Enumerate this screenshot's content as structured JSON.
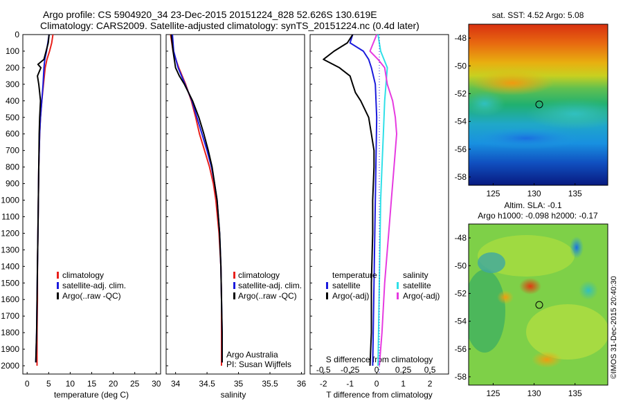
{
  "header": {
    "line1": "Argo profile: CS 5904920_34 23-Dec-2015 20151224_828 52.626S 130.619E",
    "line2": "Climatology: CARS2009. Satellite-adjusted climatology: synTS_20151224.nc (0.4d later)"
  },
  "side_label": "©IMOS 31-Dec-2015 20:40:30",
  "depth_ticks": [
    "0",
    "100",
    "200",
    "300",
    "400",
    "500",
    "600",
    "700",
    "800",
    "900",
    "1000",
    "1100",
    "1200",
    "1300",
    "1400",
    "1500",
    "1600",
    "1700",
    "1800",
    "1900",
    "2000"
  ],
  "colors": {
    "climatology": "#e8201b",
    "satellite": "#1a1adc",
    "argo": "#000000",
    "cyan": "#2fe0e8",
    "magenta": "#e63ae0"
  },
  "chart_data": [
    {
      "type": "line",
      "id": "temperature",
      "xlabel": "temperature (deg C)",
      "xlim": [
        -1,
        31
      ],
      "ylim": [
        2050,
        0
      ],
      "xticks": [
        "0",
        "5",
        "10",
        "15",
        "20",
        "25",
        "30"
      ],
      "legend": [
        "climatology",
        "satellite-adj. clim.",
        "Argo(..raw -QC)"
      ],
      "series": [
        {
          "name": "climatology",
          "color": "#e8201b",
          "depth": [
            0,
            50,
            100,
            150,
            200,
            300,
            400,
            500,
            600,
            800,
            1000,
            1200,
            1400,
            1600,
            1800,
            2000
          ],
          "values": [
            6.0,
            5.7,
            5.2,
            4.6,
            4.2,
            3.8,
            3.4,
            3.1,
            2.9,
            2.7,
            2.6,
            2.5,
            2.4,
            2.4,
            2.3,
            2.3
          ]
        },
        {
          "name": "satellite-adj. clim.",
          "color": "#1a1adc",
          "depth": [
            0,
            50,
            100,
            150,
            200,
            300,
            400,
            500,
            600,
            800,
            1000,
            1200,
            1400,
            1600,
            1800,
            1980
          ],
          "values": [
            5.1,
            4.8,
            4.5,
            4.1,
            3.9,
            3.7,
            3.4,
            3.1,
            2.9,
            2.7,
            2.6,
            2.5,
            2.4,
            2.3,
            2.2,
            2.0
          ]
        },
        {
          "name": "Argo(..raw -QC)",
          "color": "#000000",
          "depth": [
            0,
            50,
            100,
            150,
            180,
            200,
            250,
            300,
            350,
            400,
            500,
            600,
            800,
            1000,
            1200,
            1400,
            1600,
            1800,
            1980
          ],
          "values": [
            5.1,
            4.9,
            4.4,
            3.9,
            2.5,
            3.2,
            2.4,
            2.7,
            2.9,
            3.1,
            2.9,
            2.8,
            2.7,
            2.6,
            2.5,
            2.4,
            2.3,
            2.2,
            2.0
          ]
        }
      ]
    },
    {
      "type": "line",
      "id": "salinity",
      "xlabel": "salinity",
      "xlim": [
        33.85,
        36.05
      ],
      "ylim": [
        2050,
        0
      ],
      "xticks": [
        "34",
        "34.5",
        "35",
        "35.5",
        "36"
      ],
      "legend": [
        "climatology",
        "satellite-adj. clim.",
        "Argo(..raw -QC)"
      ],
      "annotation": [
        "Argo Australia",
        "PI: Susan Wijffels"
      ],
      "series": [
        {
          "name": "climatology",
          "color": "#e8201b",
          "depth": [
            0,
            100,
            200,
            300,
            400,
            500,
            600,
            700,
            800,
            900,
            1000,
            1200,
            1400,
            1600,
            1800,
            2000
          ],
          "values": [
            33.92,
            33.96,
            34.05,
            34.16,
            34.25,
            34.32,
            34.38,
            34.46,
            34.54,
            34.6,
            34.64,
            34.69,
            34.72,
            34.73,
            34.73,
            34.73
          ]
        },
        {
          "name": "satellite-adj. clim.",
          "color": "#1a1adc",
          "depth": [
            0,
            100,
            200,
            300,
            400,
            500,
            600,
            700,
            800,
            900,
            1000,
            1200,
            1400,
            1600,
            1800,
            1980
          ],
          "values": [
            33.95,
            33.97,
            34.04,
            34.15,
            34.26,
            34.34,
            34.42,
            34.5,
            34.57,
            34.62,
            34.66,
            34.7,
            34.72,
            34.73,
            34.74,
            34.74
          ]
        },
        {
          "name": "Argo(..raw -QC)",
          "color": "#000000",
          "depth": [
            0,
            100,
            200,
            250,
            300,
            400,
            500,
            600,
            700,
            800,
            900,
            1000,
            1200,
            1400,
            1600,
            1800,
            1980
          ],
          "values": [
            33.93,
            33.96,
            34.0,
            34.06,
            34.14,
            34.27,
            34.37,
            34.45,
            34.52,
            34.58,
            34.62,
            34.66,
            34.7,
            34.72,
            34.73,
            34.74,
            34.74
          ]
        }
      ]
    },
    {
      "type": "line",
      "id": "difference",
      "xlabel": "T difference from climatology",
      "xlabel2": "S difference from climatology",
      "xlim": [
        -2.5,
        2.7
      ],
      "ylim": [
        2050,
        0
      ],
      "xticks": [
        "-2",
        "-1",
        "0",
        "1",
        "2"
      ],
      "xticks2": [
        "-0.5",
        "-0.25",
        "0",
        "0.25",
        "0.5"
      ],
      "legend_t": [
        "temperature",
        "satellite",
        "Argo(-adj)"
      ],
      "legend_s": [
        "salinity",
        "satellite",
        "Argo(-adj)"
      ],
      "series": [
        {
          "name": "satellite",
          "color": "#1a1adc",
          "depth": [
            0,
            50,
            100,
            150,
            200,
            300,
            500,
            1000,
            1500,
            2000
          ],
          "values": [
            -0.9,
            -1.0,
            -0.5,
            -0.3,
            -0.2,
            -0.05,
            0.0,
            -0.05,
            -0.1,
            -0.15
          ]
        },
        {
          "name": "Argo(-adj)",
          "color": "#000000",
          "depth": [
            0,
            50,
            100,
            150,
            200,
            250,
            300,
            350,
            400,
            500,
            600,
            700,
            800,
            1000,
            1200,
            1500,
            1800,
            2000
          ],
          "values": [
            -0.9,
            -1.1,
            -1.6,
            -2.0,
            -1.4,
            -1.0,
            -0.9,
            -0.8,
            -0.6,
            -0.3,
            -0.2,
            -0.1,
            -0.1,
            -0.15,
            -0.15,
            -0.2,
            -0.2,
            -0.25
          ]
        },
        {
          "name": "satellite",
          "color": "#2fe0e8",
          "depth": [
            0,
            100,
            200,
            300,
            400,
            600,
            800,
            1000,
            1500,
            2000
          ],
          "values": [
            0.05,
            0.15,
            0.4,
            0.35,
            0.3,
            0.25,
            0.2,
            0.15,
            0.1,
            0.05
          ]
        },
        {
          "name": "Argo(-adj)",
          "color": "#e63ae0",
          "depth": [
            0,
            100,
            150,
            200,
            300,
            400,
            500,
            600,
            700,
            800,
            1000,
            1200,
            1500,
            1800,
            2000
          ],
          "values": [
            0.0,
            -0.25,
            0.05,
            0.3,
            0.4,
            0.6,
            0.7,
            0.75,
            0.7,
            0.65,
            0.55,
            0.45,
            0.3,
            0.2,
            0.1
          ]
        }
      ]
    },
    {
      "type": "heatmap",
      "id": "sst",
      "title": "sat. SST: 4.52 Argo: 5.08",
      "xticks": [
        "125",
        "130",
        "135"
      ],
      "yticks": [
        "-48",
        "-50",
        "-52",
        "-54",
        "-56",
        "-58"
      ],
      "marker": {
        "lon": 130.6,
        "lat": -52.6
      }
    },
    {
      "type": "heatmap",
      "id": "sla",
      "title": "Altim. SLA: -0.1",
      "title2": "Argo h1000: -0.098 h2000: -0.17",
      "xticks": [
        "125",
        "130",
        "135"
      ],
      "yticks": [
        "-48",
        "-50",
        "-52",
        "-54",
        "-56",
        "-58"
      ],
      "marker": {
        "lon": 130.6,
        "lat": -52.6
      }
    }
  ]
}
